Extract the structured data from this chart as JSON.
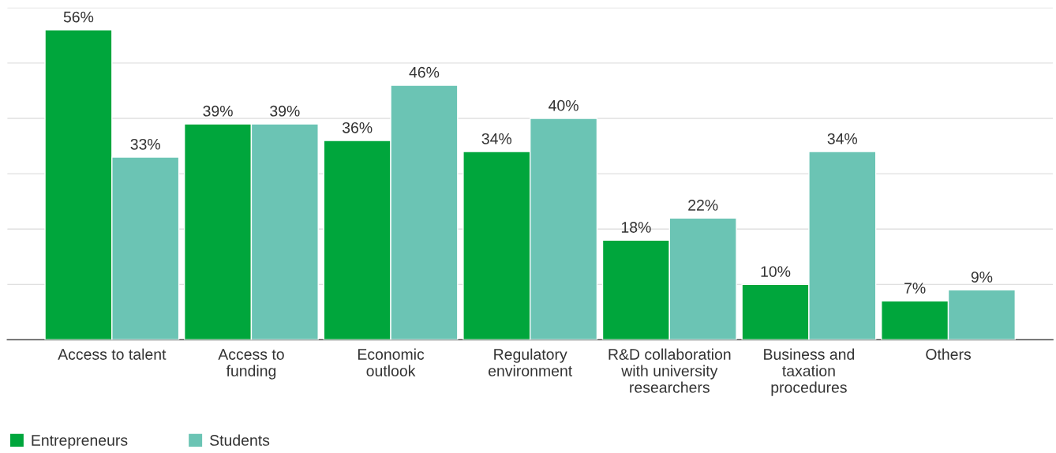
{
  "chart_data": {
    "type": "bar",
    "categories": [
      "Access to talent",
      "Access to\nfunding",
      "Economic\noutlook",
      "Regulatory\nenvironment",
      "R&D collaboration\nwith university\nresearchers",
      "Business and\ntaxation\nprocedures",
      "Others"
    ],
    "series": [
      {
        "name": "Entrepreneurs",
        "color": "#00a63c",
        "values": [
          56,
          39,
          36,
          34,
          18,
          10,
          7
        ],
        "value_labels": [
          "56%",
          "39%",
          "36%",
          "34%",
          "18%",
          "10%",
          "7%"
        ]
      },
      {
        "name": "Students",
        "color": "#6bc4b4",
        "values": [
          33,
          39,
          46,
          40,
          22,
          34,
          9
        ],
        "value_labels": [
          "33%",
          "39%",
          "46%",
          "40%",
          "22%",
          "34%",
          "9%"
        ]
      }
    ],
    "ylim": [
      0,
      60
    ],
    "yticks": [
      {
        "value": 0,
        "label": null
      },
      {
        "value": 10,
        "label": null
      },
      {
        "value": 20,
        "label": null
      },
      {
        "value": 30,
        "label": null
      },
      {
        "value": 40,
        "label": null
      },
      {
        "value": 50,
        "label": null
      },
      {
        "value": 60,
        "label": null
      }
    ],
    "grid": "y",
    "legend": "bottom left",
    "tick_labels": "x"
  }
}
